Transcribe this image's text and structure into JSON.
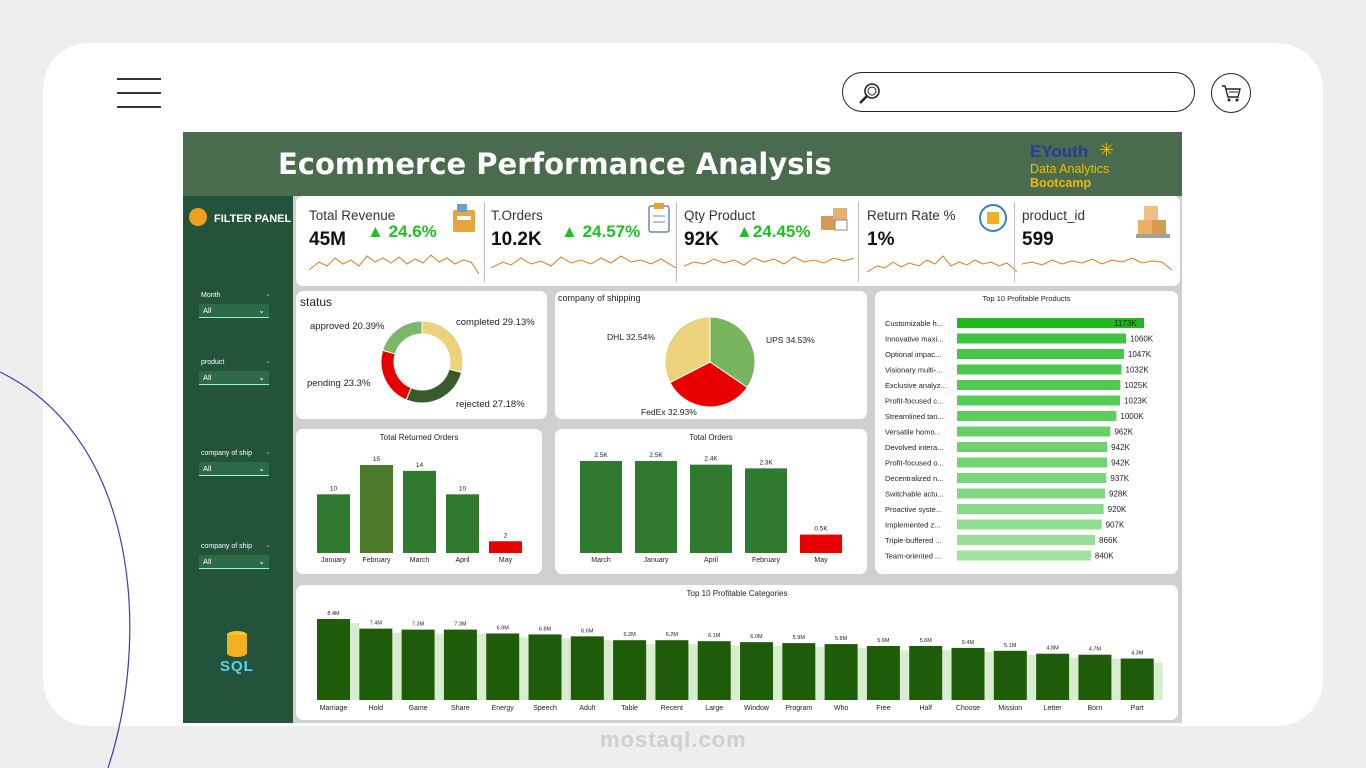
{
  "header": {
    "title": "Ecommerce Performance Analysis",
    "brand": "EYouth",
    "brand_sub1": "Data Analytics",
    "brand_sub2": "Bootcamp"
  },
  "filter_panel": {
    "title": "FILTER PANEL",
    "slicers": [
      {
        "label": "Month",
        "value": "All"
      },
      {
        "label": "product",
        "value": "All"
      },
      {
        "label": "company of ship",
        "value": "All"
      },
      {
        "label": "company of ship",
        "value": "All"
      }
    ],
    "sql_label": "SQL"
  },
  "kpis": [
    {
      "title": "Total Revenue",
      "value": "45M",
      "change": "24.6%",
      "icon": "cash-register-icon"
    },
    {
      "title": "T.Orders",
      "value": "10.2K",
      "change": "24.57%",
      "icon": "clipboard-icon"
    },
    {
      "title": "Qty Product",
      "value": "92K",
      "change": "24.45%",
      "icon": "boxes-icon"
    },
    {
      "title": "Return Rate %",
      "value": "1%",
      "change": "",
      "icon": "return-box-icon"
    },
    {
      "title": "product_id",
      "value": "599",
      "change": "",
      "icon": "pallet-icon"
    }
  ],
  "colors": {
    "header": "#4a6b4d",
    "sidebar": "#24533c",
    "bar_dark": "#1f5c0a",
    "bar_mid": "#2f7a2f",
    "highlight": "#e00000",
    "positive": "#20c020",
    "spark": "#e07a20"
  },
  "chart_data": [
    {
      "type": "donut",
      "title": "status",
      "categories": [
        "completed",
        "rejected",
        "pending",
        "approved"
      ],
      "values": [
        29.13,
        27.18,
        23.3,
        20.39
      ],
      "labels": [
        "completed 29.13%",
        "rejected 27.18%",
        "pending 23.3%",
        "approved 20.39%"
      ],
      "colors": [
        "#ecd27a",
        "#3a5a2e",
        "#e80000",
        "#7cb86a"
      ]
    },
    {
      "type": "pie",
      "title": "company of shipping",
      "categories": [
        "UPS",
        "FedEx",
        "DHL"
      ],
      "values": [
        34.53,
        32.93,
        32.54
      ],
      "labels": [
        "UPS 34.53%",
        "FedEx 32.93%",
        "DHL 32.54%"
      ],
      "colors": [
        "#76b45e",
        "#e80000",
        "#ecd27a"
      ]
    },
    {
      "type": "bar",
      "title": "Top 10 Profitable Products",
      "orientation": "horizontal",
      "categories": [
        "Customizable h...",
        "Innovative maxi...",
        "Optional impac...",
        "Visionary multi-...",
        "Exclusive analyz...",
        "Profit-focused c...",
        "Streamlined tan...",
        "Versatile homo...",
        "Devolved intera...",
        "Profit-focused o...",
        "Decentralized n...",
        "Switchable actu...",
        "Proactive syste...",
        "Implemented z...",
        "Triple-buffered ...",
        "Team-oriented ..."
      ],
      "values": [
        1173,
        1060,
        1047,
        1032,
        1025,
        1023,
        1000,
        962,
        942,
        942,
        937,
        928,
        920,
        907,
        866,
        840
      ],
      "value_labels": [
        "1173K",
        "1060K",
        "1047K",
        "1032K",
        "1025K",
        "1023K",
        "1000K",
        "962K",
        "942K",
        "942K",
        "937K",
        "928K",
        "920K",
        "907K",
        "866K",
        "840K"
      ]
    },
    {
      "type": "bar",
      "title": "Total Returned Orders",
      "categories": [
        "January",
        "February",
        "March",
        "April",
        "May"
      ],
      "values": [
        10,
        15,
        14,
        10,
        2
      ],
      "value_labels": [
        "10",
        "15",
        "14",
        "10",
        "2"
      ]
    },
    {
      "type": "bar",
      "title": "Total Orders",
      "categories": [
        "March",
        "January",
        "April",
        "February",
        "May"
      ],
      "values": [
        2.5,
        2.5,
        2.4,
        2.3,
        0.5
      ],
      "value_labels": [
        "2.5K",
        "2.5K",
        "2.4K",
        "2.3K",
        "0.5K"
      ]
    },
    {
      "type": "bar",
      "title": "Top 10 Profitable Categories",
      "categories": [
        "Marriage",
        "Hold",
        "Game",
        "Share",
        "Energy",
        "Speech",
        "Adult",
        "Table",
        "Recent",
        "Large",
        "Window",
        "Program",
        "Who",
        "Free",
        "Half",
        "Choose",
        "Mission",
        "Letter",
        "Born",
        "Part"
      ],
      "values": [
        8.4,
        7.4,
        7.3,
        7.3,
        6.9,
        6.8,
        6.6,
        6.2,
        6.2,
        6.1,
        6.0,
        5.9,
        5.8,
        5.6,
        5.6,
        5.4,
        5.1,
        4.8,
        4.7,
        4.3
      ],
      "value_labels": [
        "8.4M",
        "7.4M",
        "7.3M",
        "7.3M",
        "6.9M",
        "6.8M",
        "6.6M",
        "6.2M",
        "6.2M",
        "6.1M",
        "6.0M",
        "5.9M",
        "5.8M",
        "5.6M",
        "5.6M",
        "5.4M",
        "5.1M",
        "4.8M",
        "4.7M",
        "4.3M"
      ]
    }
  ],
  "watermark": "mostaql.com"
}
